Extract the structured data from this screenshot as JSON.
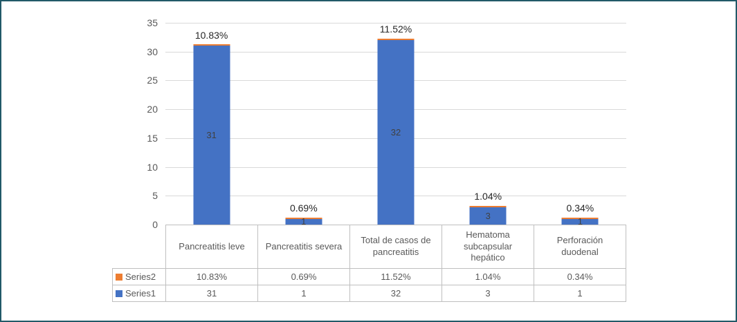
{
  "chart_data": {
    "type": "bar",
    "subtype": "stacked-column",
    "title": "",
    "categories": [
      "Pancreatitis leve",
      "Pancreatitis severa",
      "Total de casos de pancreatitis",
      "Hematoma subcapsular hepático",
      "Perforación duodenal"
    ],
    "series": [
      {
        "name": "Series1",
        "color": "#4472C4",
        "values": [
          31,
          1,
          32,
          3,
          1
        ]
      },
      {
        "name": "Series2",
        "color": "#ED7D31",
        "values_percent": [
          10.83,
          0.69,
          11.52,
          1.04,
          0.34
        ],
        "labels": [
          "10.83%",
          "0.69%",
          "11.52%",
          "1.04%",
          "0.34%"
        ]
      }
    ],
    "ylim": [
      0,
      35
    ],
    "yticks": [
      "35",
      "30",
      "25",
      "20",
      "15",
      "10",
      "5",
      "0"
    ],
    "grid": true,
    "legend_position": "data-table-left",
    "data_table": true
  },
  "colors": {
    "frame_border": "#215968",
    "gridline": "#D9D9D9",
    "table_border": "#BFBFBF",
    "series1": "#4472C4",
    "series2": "#ED7D31"
  }
}
